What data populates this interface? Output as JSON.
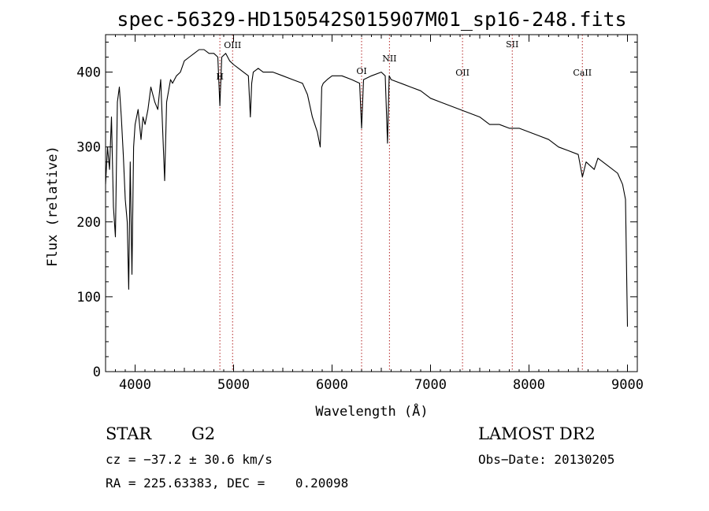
{
  "chart_data": {
    "type": "line",
    "title": "spec-56329-HD150542S015907M01_sp16-248.fits",
    "xlabel": "Wavelength (Å)",
    "ylabel": "Flux (relative)",
    "xlim": [
      3700,
      9100
    ],
    "ylim": [
      0,
      450
    ],
    "xticks": [
      4000,
      5000,
      6000,
      7000,
      8000,
      9000
    ],
    "yticks": [
      0,
      100,
      200,
      300,
      400
    ],
    "grid": false,
    "series": [
      {
        "x": [
          3700,
          3720,
          3740,
          3760,
          3780,
          3800,
          3820,
          3840,
          3860,
          3880,
          3900,
          3920,
          3935,
          3950,
          3968,
          3985,
          4000,
          4030,
          4060,
          4080,
          4101,
          4130,
          4160,
          4200,
          4230,
          4260,
          4300,
          4320,
          4340,
          4360,
          4380,
          4420,
          4460,
          4500,
          4550,
          4600,
          4650,
          4700,
          4750,
          4800,
          4840,
          4861,
          4880,
          4920,
          4960,
          5000,
          5050,
          5100,
          5150,
          5170,
          5184,
          5200,
          5250,
          5300,
          5400,
          5500,
          5600,
          5700,
          5750,
          5800,
          5850,
          5880,
          5895,
          5910,
          5950,
          6000,
          6100,
          6200,
          6280,
          6300,
          6320,
          6400,
          6500,
          6540,
          6563,
          6580,
          6600,
          6700,
          6800,
          6900,
          7000,
          7100,
          7200,
          7300,
          7400,
          7500,
          7600,
          7700,
          7800,
          7900,
          8000,
          8100,
          8200,
          8300,
          8400,
          8500,
          8542,
          8580,
          8662,
          8700,
          8800,
          8900,
          8950,
          8980,
          8995,
          9000
        ],
        "values": [
          250,
          300,
          270,
          340,
          220,
          180,
          360,
          380,
          340,
          290,
          230,
          200,
          110,
          280,
          130,
          300,
          330,
          350,
          310,
          340,
          330,
          350,
          380,
          360,
          350,
          390,
          255,
          360,
          375,
          390,
          385,
          395,
          400,
          415,
          420,
          425,
          430,
          430,
          425,
          425,
          420,
          355,
          420,
          425,
          415,
          410,
          405,
          400,
          395,
          340,
          385,
          400,
          405,
          400,
          400,
          395,
          390,
          385,
          370,
          340,
          320,
          300,
          380,
          385,
          390,
          395,
          395,
          390,
          385,
          325,
          390,
          395,
          400,
          395,
          305,
          395,
          390,
          385,
          380,
          375,
          365,
          360,
          355,
          350,
          345,
          340,
          330,
          330,
          325,
          325,
          320,
          315,
          310,
          300,
          295,
          290,
          260,
          280,
          270,
          285,
          275,
          265,
          250,
          230,
          100,
          60
        ]
      }
    ],
    "line_markers": [
      {
        "label": "H",
        "x": 4861
      },
      {
        "label": "OIII",
        "x": 4990
      },
      {
        "label": "OI",
        "x": 6300
      },
      {
        "label": "NII",
        "x": 6583
      },
      {
        "label": "OII",
        "x": 7325
      },
      {
        "label": "SII",
        "x": 7830
      },
      {
        "label": "CaII",
        "x": 8542
      }
    ]
  },
  "info": {
    "object_class": "STAR",
    "subclass": "G2",
    "survey": "LAMOST DR2",
    "redshift": "cz = −37.2 ± 30.6 km/s",
    "obs_date": "Obs−Date: 20130205",
    "coords": "RA = 225.63383, DEC =    0.20098"
  }
}
